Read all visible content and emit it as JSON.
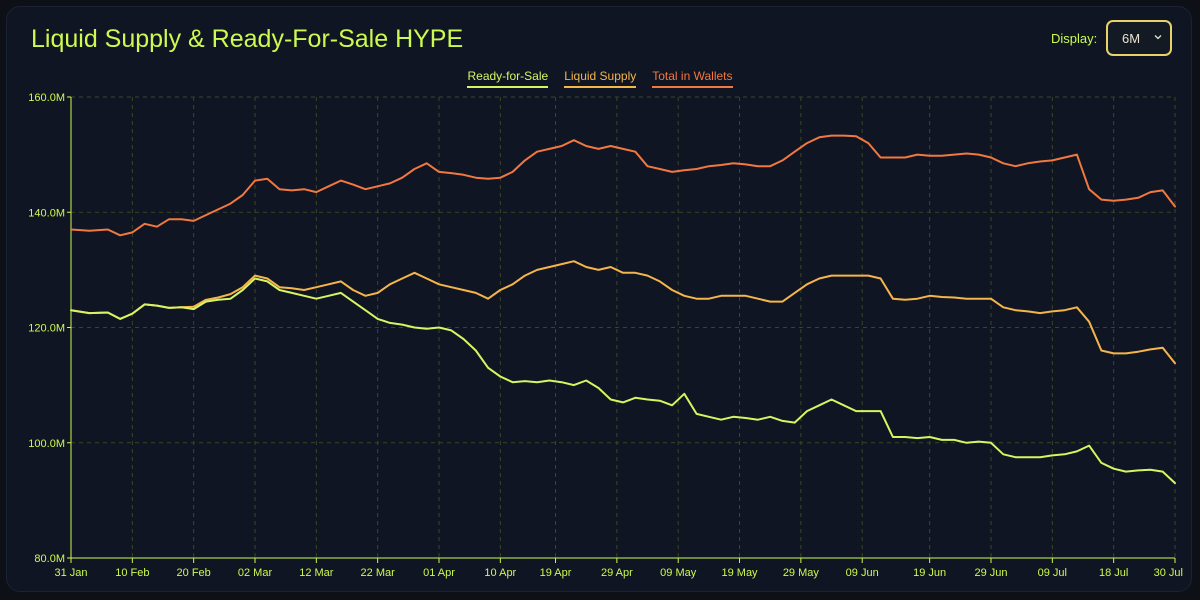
{
  "header": {
    "title": "Liquid Supply & Ready-For-Sale HYPE",
    "display_label": "Display:",
    "display_value": "6M"
  },
  "colors": {
    "accent": "#cdfa50",
    "ready_for_sale": "#d7f562",
    "liquid_supply": "#f5b54a",
    "total_in_wallets": "#f2783f",
    "grid": "#3c4523",
    "dropdown_border": "#e8d36a"
  },
  "chart_data": {
    "type": "line",
    "title": "Liquid Supply & Ready-For-Sale HYPE",
    "xlabel": "",
    "ylabel": "",
    "ylim": [
      80,
      160
    ],
    "yticks": [
      80,
      100,
      120,
      140,
      160
    ],
    "ytick_labels": [
      "80.0M",
      "100.0M",
      "120.0M",
      "140.0M",
      "160.0M"
    ],
    "xlim": [
      0,
      180
    ],
    "xticks": [
      0,
      10,
      20,
      30,
      40,
      50,
      60,
      70,
      79,
      89,
      99,
      109,
      119,
      129,
      140,
      150,
      160,
      170,
      180
    ],
    "xtick_labels": [
      "31 Jan",
      "10 Feb",
      "20 Feb",
      "02 Mar",
      "12 Mar",
      "22 Mar",
      "01 Apr",
      "10 Apr",
      "19 Apr",
      "29 Apr",
      "09 May",
      "19 May",
      "29 May",
      "09 Jun",
      "19 Jun",
      "29 Jun",
      "09 Jul",
      "18 Jul",
      "30 Jul"
    ],
    "grid": true,
    "legend_position": "top-center",
    "series": [
      {
        "name": "Ready-for-Sale",
        "color": "#d7f562",
        "x": [
          0,
          3,
          6,
          8,
          10,
          12,
          14,
          16,
          18,
          20,
          22,
          24,
          26,
          28,
          30,
          32,
          34,
          36,
          38,
          40,
          42,
          44,
          46,
          48,
          50,
          52,
          54,
          56,
          58,
          60,
          62,
          64,
          66,
          68,
          70,
          72,
          74,
          76,
          78,
          80,
          82,
          84,
          86,
          88,
          90,
          92,
          94,
          96,
          98,
          100,
          102,
          104,
          106,
          108,
          110,
          112,
          114,
          116,
          118,
          120,
          122,
          124,
          126,
          128,
          130,
          132,
          134,
          136,
          138,
          140,
          142,
          144,
          146,
          148,
          150,
          152,
          154,
          156,
          158,
          160,
          162,
          164,
          166,
          168,
          170,
          172,
          174,
          176,
          178,
          180
        ],
        "y": [
          123,
          122.5,
          122.6,
          121.5,
          122.4,
          124,
          123.8,
          123.4,
          123.5,
          123.2,
          124.5,
          124.8,
          125,
          126.5,
          128.5,
          128,
          126.5,
          126,
          125.5,
          125,
          125.5,
          126,
          124.5,
          123,
          121.5,
          120.8,
          120.5,
          120,
          119.8,
          120,
          119.5,
          118,
          116,
          113,
          111.5,
          110.5,
          110.7,
          110.5,
          110.8,
          110.5,
          110,
          110.8,
          109.5,
          107.5,
          107,
          107.8,
          107.5,
          107.3,
          106.5,
          108.5,
          105,
          104.5,
          104,
          104.5,
          104.3,
          104,
          104.5,
          103.8,
          103.5,
          105.5,
          106.5,
          107.5,
          106.5,
          105.5,
          105.5,
          105.5,
          101,
          101,
          100.8,
          101,
          100.5,
          100.5,
          100,
          100.2,
          100,
          98,
          97.5,
          97.5,
          97.5,
          97.8,
          98,
          98.5,
          99.5,
          96.5,
          95.5,
          95,
          95.2,
          95.3,
          95,
          93
        ]
      },
      {
        "name": "Liquid Supply",
        "color": "#f5b54a",
        "x": [
          0,
          3,
          6,
          8,
          10,
          12,
          14,
          16,
          18,
          20,
          22,
          24,
          26,
          28,
          30,
          32,
          34,
          36,
          38,
          40,
          42,
          44,
          46,
          48,
          50,
          52,
          54,
          56,
          58,
          60,
          62,
          64,
          66,
          68,
          70,
          72,
          74,
          76,
          78,
          80,
          82,
          84,
          86,
          88,
          90,
          92,
          94,
          96,
          98,
          100,
          102,
          104,
          106,
          108,
          110,
          112,
          114,
          116,
          118,
          120,
          122,
          124,
          126,
          128,
          130,
          132,
          134,
          136,
          138,
          140,
          142,
          144,
          146,
          148,
          150,
          152,
          154,
          156,
          158,
          160,
          162,
          164,
          166,
          168,
          170,
          172,
          174,
          176,
          178,
          180
        ],
        "y": [
          123,
          122.5,
          122.6,
          121.5,
          122.4,
          124,
          123.8,
          123.4,
          123.5,
          123.6,
          124.8,
          125.2,
          125.8,
          127,
          129,
          128.5,
          127,
          126.8,
          126.5,
          127,
          127.5,
          128,
          126.5,
          125.5,
          126,
          127.5,
          128.5,
          129.5,
          128.5,
          127.5,
          127,
          126.5,
          126,
          125,
          126.5,
          127.5,
          129,
          130,
          130.5,
          131,
          131.5,
          130.5,
          130,
          130.5,
          129.5,
          129.5,
          129,
          128,
          126.5,
          125.5,
          125,
          125,
          125.5,
          125.5,
          125.5,
          125,
          124.5,
          124.5,
          126,
          127.5,
          128.5,
          129,
          129,
          129,
          129,
          128.5,
          125,
          124.8,
          125,
          125.5,
          125.3,
          125.2,
          125,
          125,
          125,
          123.5,
          123,
          122.8,
          122.5,
          122.8,
          123,
          123.5,
          121,
          116,
          115.5,
          115.5,
          115.8,
          116.2,
          116.5,
          113.8
        ]
      },
      {
        "name": "Total in Wallets",
        "color": "#f2783f",
        "x": [
          0,
          3,
          6,
          8,
          10,
          12,
          14,
          16,
          18,
          20,
          22,
          24,
          26,
          28,
          30,
          32,
          34,
          36,
          38,
          40,
          42,
          44,
          46,
          48,
          50,
          52,
          54,
          56,
          58,
          60,
          62,
          64,
          66,
          68,
          70,
          72,
          74,
          76,
          78,
          80,
          82,
          84,
          86,
          88,
          90,
          92,
          94,
          96,
          98,
          100,
          102,
          104,
          106,
          108,
          110,
          112,
          114,
          116,
          118,
          120,
          122,
          124,
          126,
          128,
          130,
          132,
          134,
          136,
          138,
          140,
          142,
          144,
          146,
          148,
          150,
          152,
          154,
          156,
          158,
          160,
          162,
          164,
          166,
          168,
          170,
          172,
          174,
          176,
          178,
          180
        ],
        "y": [
          137,
          136.8,
          137,
          136,
          136.5,
          138,
          137.5,
          138.8,
          138.8,
          138.5,
          139.5,
          140.5,
          141.5,
          143,
          145.5,
          145.8,
          144,
          143.8,
          144,
          143.5,
          144.5,
          145.5,
          144.8,
          144,
          144.5,
          145,
          146,
          147.5,
          148.5,
          147,
          146.8,
          146.5,
          146,
          145.8,
          146,
          147,
          149,
          150.5,
          151,
          151.5,
          152.5,
          151.5,
          151,
          151.5,
          151,
          150.5,
          148,
          147.5,
          147,
          147.3,
          147.5,
          148,
          148.2,
          148.5,
          148.3,
          148,
          148,
          149,
          150.5,
          152,
          153,
          153.3,
          153.3,
          153.2,
          152,
          149.5,
          149.5,
          149.5,
          150,
          149.8,
          149.8,
          150,
          150.2,
          150,
          149.5,
          148.5,
          148,
          148.5,
          148.8,
          149,
          149.5,
          150,
          144,
          142.2,
          142,
          142.2,
          142.5,
          143.5,
          143.8,
          141
        ]
      }
    ]
  }
}
